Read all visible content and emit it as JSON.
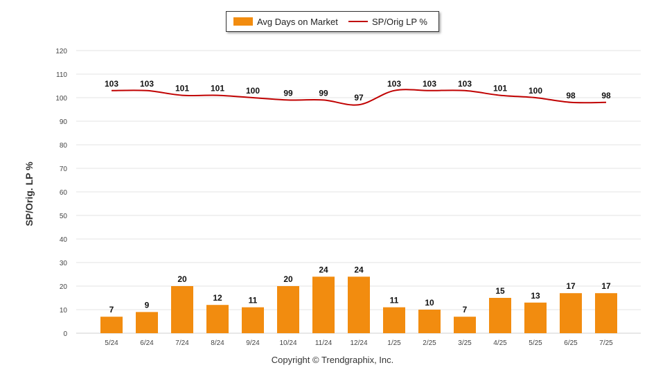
{
  "chart_data": {
    "type": "bar",
    "categories": [
      "5/24",
      "6/24",
      "7/24",
      "8/24",
      "9/24",
      "10/24",
      "11/24",
      "12/24",
      "1/25",
      "2/25",
      "3/25",
      "4/25",
      "5/25",
      "6/25",
      "7/25"
    ],
    "series": [
      {
        "name": "Avg Days on Market",
        "type": "bar",
        "color": "#f28c0f",
        "values": [
          7,
          9,
          20,
          12,
          11,
          20,
          24,
          24,
          11,
          10,
          7,
          15,
          13,
          17,
          17
        ]
      },
      {
        "name": "SP/Orig LP %",
        "type": "line",
        "color": "#c00000",
        "values": [
          103,
          103,
          101,
          101,
          100,
          99,
          99,
          97,
          103,
          103,
          103,
          101,
          100,
          98,
          98
        ]
      }
    ],
    "ylabel": "SP/Orig. LP %",
    "ylim": [
      0,
      120
    ],
    "yticks": [
      0,
      10,
      20,
      30,
      40,
      50,
      60,
      70,
      80,
      90,
      100,
      110,
      120
    ],
    "grid": true,
    "legend": "top-center"
  },
  "footer": {
    "copyright": "Copyright © Trendgraphix, Inc."
  }
}
